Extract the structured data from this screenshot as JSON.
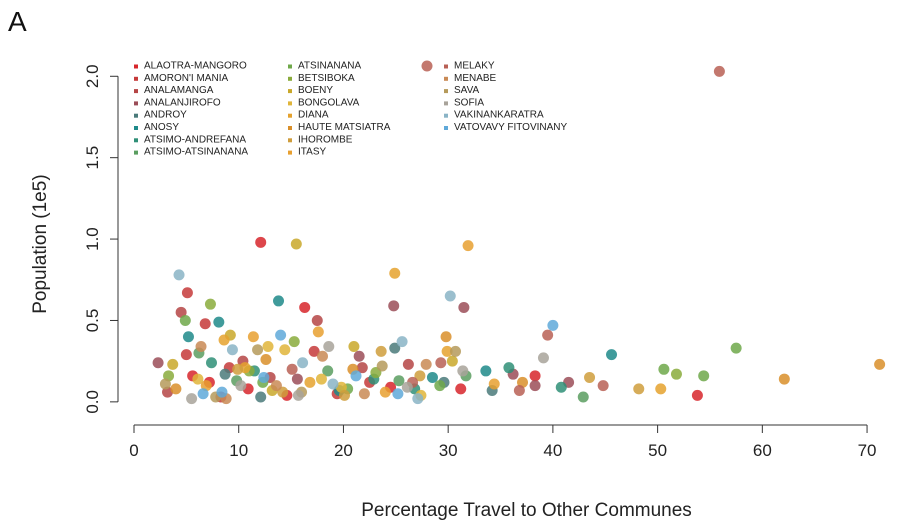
{
  "panel_label": "A",
  "chart_data": {
    "type": "scatter",
    "title": "",
    "xlabel": "Percentage Travel to Other Communes",
    "ylabel": "Population (1e5)",
    "xlim": [
      0,
      72
    ],
    "ylim": [
      -0.05,
      2.1
    ],
    "xticks": [
      0,
      10,
      20,
      30,
      40,
      50,
      60,
      70
    ],
    "yticks": [
      0.0,
      0.5,
      1.0,
      1.5,
      2.0
    ],
    "grid": false,
    "legend_placement": "top-left",
    "series": [
      {
        "name": "ALAOTRA-MANGORO",
        "color": "#d7262b",
        "points": [
          [
            12.1,
            0.98
          ],
          [
            16.3,
            0.58
          ],
          [
            5.6,
            0.16
          ],
          [
            7.2,
            0.12
          ],
          [
            10.9,
            0.08
          ],
          [
            14.6,
            0.04
          ],
          [
            31.2,
            0.08
          ],
          [
            38.3,
            0.16
          ],
          [
            53.8,
            0.04
          ],
          [
            24.5,
            0.09
          ]
        ]
      },
      {
        "name": "AMORON'I MANIA",
        "color": "#c63a3a",
        "points": [
          [
            5.1,
            0.67
          ],
          [
            6.8,
            0.48
          ],
          [
            5.0,
            0.29
          ],
          [
            9.1,
            0.21
          ],
          [
            17.2,
            0.31
          ],
          [
            22.5,
            0.12
          ],
          [
            19.4,
            0.05
          ],
          [
            8.3,
            0.03
          ]
        ]
      },
      {
        "name": "ANALAMANGA",
        "color": "#b54545",
        "points": [
          [
            4.5,
            0.55
          ],
          [
            17.5,
            0.5
          ],
          [
            10.4,
            0.25
          ],
          [
            21.8,
            0.21
          ],
          [
            26.2,
            0.23
          ],
          [
            13.0,
            0.15
          ],
          [
            3.2,
            0.06
          ]
        ]
      },
      {
        "name": "ANALANJIROFO",
        "color": "#9b4d58",
        "points": [
          [
            24.8,
            0.59
          ],
          [
            31.5,
            0.58
          ],
          [
            21.5,
            0.28
          ],
          [
            36.2,
            0.17
          ],
          [
            38.3,
            0.1
          ],
          [
            2.3,
            0.24
          ],
          [
            15.6,
            0.14
          ],
          [
            41.5,
            0.12
          ]
        ]
      },
      {
        "name": "ANDROY",
        "color": "#4a7a7a",
        "points": [
          [
            24.9,
            0.33
          ],
          [
            8.7,
            0.17
          ],
          [
            29.6,
            0.12
          ],
          [
            34.2,
            0.07
          ],
          [
            12.1,
            0.03
          ]
        ]
      },
      {
        "name": "ANOSY",
        "color": "#1e8a8a",
        "points": [
          [
            13.8,
            0.62
          ],
          [
            8.1,
            0.49
          ],
          [
            45.6,
            0.29
          ],
          [
            5.2,
            0.4
          ],
          [
            28.5,
            0.15
          ],
          [
            33.6,
            0.19
          ],
          [
            19.6,
            0.07
          ]
        ]
      },
      {
        "name": "ATSIMO-ANDREFANA",
        "color": "#2f8f77",
        "points": [
          [
            7.4,
            0.24
          ],
          [
            11.5,
            0.19
          ],
          [
            22.9,
            0.14
          ],
          [
            26.8,
            0.08
          ],
          [
            35.8,
            0.21
          ],
          [
            40.8,
            0.09
          ]
        ]
      },
      {
        "name": "ATSIMO-ATSINANANA",
        "color": "#5a9e60",
        "points": [
          [
            6.2,
            0.3
          ],
          [
            9.8,
            0.13
          ],
          [
            18.5,
            0.19
          ],
          [
            25.3,
            0.13
          ],
          [
            42.9,
            0.03
          ],
          [
            31.7,
            0.16
          ]
        ]
      },
      {
        "name": "ATSINANANA",
        "color": "#6fa84a",
        "points": [
          [
            4.9,
            0.5
          ],
          [
            57.5,
            0.33
          ],
          [
            50.6,
            0.2
          ],
          [
            54.4,
            0.16
          ],
          [
            12.3,
            0.12
          ],
          [
            20.4,
            0.08
          ],
          [
            29.2,
            0.1
          ]
        ]
      },
      {
        "name": "BETSIBOKA",
        "color": "#8aab3c",
        "points": [
          [
            7.3,
            0.6
          ],
          [
            15.3,
            0.37
          ],
          [
            3.3,
            0.16
          ],
          [
            11.0,
            0.19
          ],
          [
            51.8,
            0.17
          ],
          [
            23.1,
            0.18
          ]
        ]
      },
      {
        "name": "BOENY",
        "color": "#c9a82a",
        "points": [
          [
            15.5,
            0.97
          ],
          [
            9.2,
            0.41
          ],
          [
            21.0,
            0.34
          ],
          [
            3.7,
            0.23
          ],
          [
            13.2,
            0.07
          ],
          [
            30.4,
            0.25
          ]
        ]
      },
      {
        "name": "BONGOLAVA",
        "color": "#e0b53a",
        "points": [
          [
            14.4,
            0.32
          ],
          [
            6.1,
            0.14
          ],
          [
            17.9,
            0.14
          ],
          [
            12.8,
            0.34
          ],
          [
            19.8,
            0.09
          ],
          [
            27.4,
            0.04
          ]
        ]
      },
      {
        "name": "DIANA",
        "color": "#e5a22e",
        "points": [
          [
            24.9,
            0.79
          ],
          [
            8.6,
            0.38
          ],
          [
            10.6,
            0.21
          ],
          [
            16.8,
            0.12
          ],
          [
            29.9,
            0.31
          ],
          [
            50.3,
            0.08
          ]
        ]
      },
      {
        "name": "HAUTE MATSIATRA",
        "color": "#d98f2a",
        "points": [
          [
            29.8,
            0.4
          ],
          [
            4.0,
            0.08
          ],
          [
            12.6,
            0.26
          ],
          [
            20.9,
            0.2
          ],
          [
            37.1,
            0.12
          ],
          [
            62.1,
            0.14
          ],
          [
            71.2,
            0.23
          ]
        ]
      },
      {
        "name": "IHOROMBE",
        "color": "#cf9d3c",
        "points": [
          [
            23.6,
            0.31
          ],
          [
            9.9,
            0.2
          ],
          [
            14.2,
            0.06
          ],
          [
            20.1,
            0.04
          ],
          [
            48.2,
            0.08
          ],
          [
            27.3,
            0.16
          ],
          [
            43.5,
            0.15
          ]
        ]
      },
      {
        "name": "ITASY",
        "color": "#e8a030",
        "points": [
          [
            31.9,
            0.96
          ],
          [
            17.6,
            0.43
          ],
          [
            11.4,
            0.4
          ],
          [
            6.9,
            0.1
          ],
          [
            24.0,
            0.06
          ],
          [
            34.4,
            0.11
          ]
        ]
      },
      {
        "name": "MELAKY",
        "color": "#b86055",
        "points": [
          [
            55.9,
            2.03
          ],
          [
            29.3,
            0.24
          ],
          [
            39.5,
            0.41
          ],
          [
            44.8,
            0.1
          ],
          [
            15.1,
            0.2
          ],
          [
            26.6,
            0.12
          ],
          [
            36.8,
            0.07
          ]
        ]
      },
      {
        "name": "MENABE",
        "color": "#c98a55",
        "points": [
          [
            6.4,
            0.34
          ],
          [
            27.9,
            0.23
          ],
          [
            18.0,
            0.28
          ],
          [
            13.6,
            0.1
          ],
          [
            22.0,
            0.05
          ],
          [
            8.8,
            0.02
          ]
        ]
      },
      {
        "name": "SAVA",
        "color": "#b59a5a",
        "points": [
          [
            11.8,
            0.32
          ],
          [
            7.8,
            0.03
          ],
          [
            16.0,
            0.06
          ],
          [
            30.7,
            0.31
          ],
          [
            23.7,
            0.22
          ],
          [
            3.0,
            0.11
          ]
        ]
      },
      {
        "name": "SOFIA",
        "color": "#a8a39a",
        "points": [
          [
            18.6,
            0.34
          ],
          [
            10.2,
            0.1
          ],
          [
            39.1,
            0.27
          ],
          [
            31.4,
            0.19
          ],
          [
            15.7,
            0.04
          ],
          [
            5.5,
            0.02
          ],
          [
            26.1,
            0.09
          ]
        ]
      },
      {
        "name": "VAKINANKARATRA",
        "color": "#8ab4c6",
        "points": [
          [
            4.3,
            0.78
          ],
          [
            30.2,
            0.65
          ],
          [
            9.4,
            0.32
          ],
          [
            16.1,
            0.24
          ],
          [
            25.6,
            0.37
          ],
          [
            19.0,
            0.11
          ],
          [
            27.1,
            0.02
          ]
        ]
      },
      {
        "name": "VATOVAVY FITOVINANY",
        "color": "#5fa9d9",
        "points": [
          [
            40.0,
            0.47
          ],
          [
            14.0,
            0.41
          ],
          [
            6.6,
            0.05
          ],
          [
            12.4,
            0.15
          ],
          [
            21.2,
            0.16
          ],
          [
            25.2,
            0.05
          ],
          [
            8.4,
            0.06
          ]
        ]
      }
    ]
  }
}
